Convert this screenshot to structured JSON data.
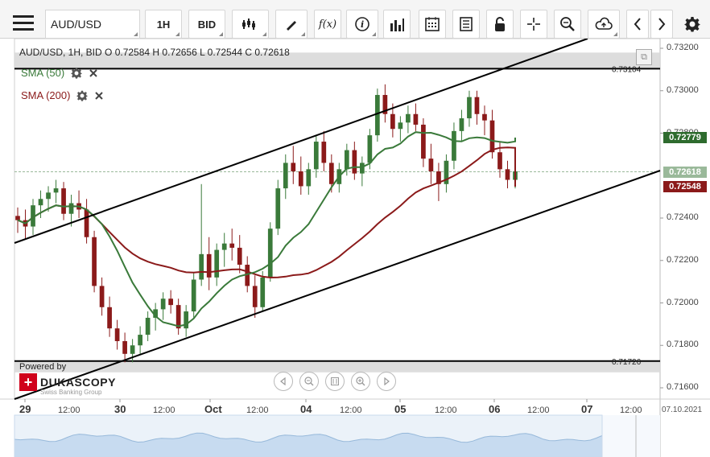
{
  "toolbar": {
    "symbol": "AUD/USD",
    "timeframe": "1H",
    "price_side": "BID",
    "buttons": [
      "candle-type",
      "draw",
      "fx-indicators",
      "info",
      "volume",
      "calendar",
      "news",
      "lock",
      "crosshair",
      "zoom",
      "cloud-save",
      "prev",
      "next",
      "settings"
    ],
    "fx_label": "f(x)",
    "info_label": "i"
  },
  "ohlc": {
    "text": "AUD/USD, 1H, BID   O  0.72584  H  0.72656  L  0.72544  C  0.72618"
  },
  "indicators": [
    {
      "label": "SMA (50)",
      "color": "#3a7a3a"
    },
    {
      "label": "SMA (200)",
      "color": "#8b1a1a"
    }
  ],
  "horizontal_lines": {
    "upper": "0.73104",
    "lower": "0.71726"
  },
  "price_tags": {
    "sma50": {
      "value": "0.72779",
      "color": "#2e6b2e"
    },
    "current": {
      "value": "0.72618",
      "color": "#9ab99a"
    },
    "sma200": {
      "value": "0.72548",
      "color": "#8b1a1a"
    }
  },
  "y_axis": [
    "0.73200",
    "0.73000",
    "0.72800",
    "0.72400",
    "0.72200",
    "0.72000",
    "0.71800",
    "0.71600"
  ],
  "x_axis": [
    {
      "label": "29",
      "major": true
    },
    {
      "label": "12:00",
      "major": false
    },
    {
      "label": "30",
      "major": true
    },
    {
      "label": "12:00",
      "major": false
    },
    {
      "label": "Oct",
      "major": true
    },
    {
      "label": "12:00",
      "major": false
    },
    {
      "label": "04",
      "major": true
    },
    {
      "label": "12:00",
      "major": false
    },
    {
      "label": "05",
      "major": true
    },
    {
      "label": "12:00",
      "major": false
    },
    {
      "label": "06",
      "major": true
    },
    {
      "label": "12:00",
      "major": false
    },
    {
      "label": "07",
      "major": true
    },
    {
      "label": "12:00",
      "major": false
    }
  ],
  "date_stamp": "07.10.2021",
  "branding": {
    "powered_by": "Powered by",
    "name": "DUKASCOPY",
    "tagline": "Swiss Banking Group",
    "cross": "+"
  },
  "nav_icons": [
    "scroll-left",
    "zoom-out",
    "reset",
    "zoom-in",
    "scroll-right"
  ],
  "colors": {
    "bull": "#3a7a3a",
    "bear": "#8b1a1a",
    "band": "#d9d9d9",
    "trend": "#000000"
  },
  "chart_data": {
    "type": "candlestick",
    "symbol": "AUD/USD",
    "ylim": [
      0.716,
      0.732
    ],
    "bars": [
      [
        0.7241,
        0.7245,
        0.7233,
        0.7239
      ],
      [
        0.7239,
        0.7244,
        0.723,
        0.7236
      ],
      [
        0.7236,
        0.7249,
        0.7232,
        0.7246
      ],
      [
        0.7246,
        0.7253,
        0.724,
        0.7249
      ],
      [
        0.7249,
        0.7255,
        0.7243,
        0.7252
      ],
      [
        0.7252,
        0.7258,
        0.7247,
        0.7254
      ],
      [
        0.7254,
        0.7257,
        0.7239,
        0.7242
      ],
      [
        0.7242,
        0.7251,
        0.7236,
        0.7247
      ],
      [
        0.7247,
        0.7253,
        0.724,
        0.7244
      ],
      [
        0.7244,
        0.7249,
        0.7228,
        0.7231
      ],
      [
        0.7231,
        0.7234,
        0.7205,
        0.7208
      ],
      [
        0.7208,
        0.7212,
        0.7194,
        0.7198
      ],
      [
        0.7198,
        0.7203,
        0.7184,
        0.7188
      ],
      [
        0.7188,
        0.7192,
        0.7178,
        0.7182
      ],
      [
        0.7182,
        0.7186,
        0.7172,
        0.7176
      ],
      [
        0.7176,
        0.7183,
        0.7172,
        0.718
      ],
      [
        0.718,
        0.7189,
        0.7176,
        0.7185
      ],
      [
        0.7185,
        0.7196,
        0.7182,
        0.7193
      ],
      [
        0.7193,
        0.72,
        0.7187,
        0.7197
      ],
      [
        0.7197,
        0.7205,
        0.7192,
        0.7202
      ],
      [
        0.7202,
        0.7206,
        0.7195,
        0.7199
      ],
      [
        0.7199,
        0.7202,
        0.7185,
        0.7188
      ],
      [
        0.7188,
        0.7199,
        0.7184,
        0.7196
      ],
      [
        0.7196,
        0.7214,
        0.7193,
        0.7211
      ],
      [
        0.7211,
        0.7256,
        0.7208,
        0.7223
      ],
      [
        0.7223,
        0.7231,
        0.7206,
        0.7212
      ],
      [
        0.7212,
        0.7228,
        0.7208,
        0.7225
      ],
      [
        0.7225,
        0.7233,
        0.7217,
        0.7228
      ],
      [
        0.7228,
        0.7235,
        0.722,
        0.7226
      ],
      [
        0.7226,
        0.7232,
        0.7214,
        0.7218
      ],
      [
        0.7218,
        0.7222,
        0.7205,
        0.7208
      ],
      [
        0.7208,
        0.7213,
        0.7193,
        0.7198
      ],
      [
        0.7198,
        0.7215,
        0.7196,
        0.7212
      ],
      [
        0.7212,
        0.7238,
        0.721,
        0.7235
      ],
      [
        0.7235,
        0.7258,
        0.7232,
        0.7254
      ],
      [
        0.7254,
        0.727,
        0.7249,
        0.7266
      ],
      [
        0.7266,
        0.7274,
        0.7256,
        0.7262
      ],
      [
        0.7262,
        0.7269,
        0.7251,
        0.7255
      ],
      [
        0.7255,
        0.7266,
        0.7251,
        0.7263
      ],
      [
        0.7263,
        0.7279,
        0.7259,
        0.7276
      ],
      [
        0.7276,
        0.7281,
        0.7262,
        0.7266
      ],
      [
        0.7266,
        0.727,
        0.7252,
        0.7256
      ],
      [
        0.7256,
        0.7266,
        0.7252,
        0.7263
      ],
      [
        0.7263,
        0.7275,
        0.726,
        0.7272
      ],
      [
        0.7272,
        0.7276,
        0.7258,
        0.7261
      ],
      [
        0.7261,
        0.7269,
        0.7255,
        0.7266
      ],
      [
        0.7266,
        0.7282,
        0.7263,
        0.7279
      ],
      [
        0.7279,
        0.7301,
        0.7276,
        0.7298
      ],
      [
        0.7298,
        0.7303,
        0.7285,
        0.7289
      ],
      [
        0.7289,
        0.7294,
        0.7278,
        0.7282
      ],
      [
        0.7282,
        0.7288,
        0.7276,
        0.7285
      ],
      [
        0.7285,
        0.7293,
        0.728,
        0.7289
      ],
      [
        0.7289,
        0.7294,
        0.7281,
        0.7284
      ],
      [
        0.7284,
        0.7287,
        0.7264,
        0.7268
      ],
      [
        0.7268,
        0.7275,
        0.7256,
        0.7262
      ],
      [
        0.7262,
        0.7266,
        0.7248,
        0.7256
      ],
      [
        0.7256,
        0.727,
        0.7252,
        0.7267
      ],
      [
        0.7267,
        0.7285,
        0.7263,
        0.7281
      ],
      [
        0.7281,
        0.7291,
        0.7276,
        0.7287
      ],
      [
        0.7287,
        0.73,
        0.7283,
        0.7297
      ],
      [
        0.7297,
        0.73,
        0.7284,
        0.7289
      ],
      [
        0.7289,
        0.7293,
        0.7279,
        0.7286
      ],
      [
        0.7286,
        0.7291,
        0.7268,
        0.7271
      ],
      [
        0.7271,
        0.7276,
        0.7259,
        0.7263
      ],
      [
        0.7263,
        0.7267,
        0.7254,
        0.7258
      ],
      [
        0.7258,
        0.7266,
        0.7254,
        0.7262
      ]
    ],
    "sma50_last": 0.72779,
    "sma200_last": 0.72548,
    "resistance": 0.73104,
    "support": 0.71726
  }
}
